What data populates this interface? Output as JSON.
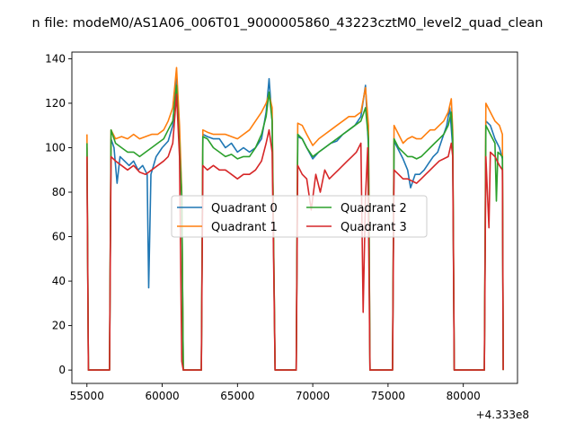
{
  "chart_data": {
    "type": "line",
    "title": "n file: modeM0/AS1A06_006T01_9000005860_43223cztM0_level2_quad_clean",
    "xlabel": "",
    "ylabel": "",
    "x_offset_label": "+4.333e8",
    "xlim": [
      54000,
      83600
    ],
    "ylim": [
      -6,
      143
    ],
    "xticks": [
      55000,
      60000,
      65000,
      70000,
      75000,
      80000
    ],
    "xtick_labels": [
      "55000",
      "60000",
      "65000",
      "70000",
      "75000",
      "80000"
    ],
    "yticks": [
      0,
      20,
      40,
      60,
      80,
      100,
      120,
      140
    ],
    "ytick_labels": [
      "0",
      "20",
      "40",
      "60",
      "80",
      "100",
      "120",
      "140"
    ],
    "legend": {
      "placement": "center",
      "columns": 2
    },
    "series": [
      {
        "name": "Quadrant 0",
        "color": "#1f77b4",
        "points": [
          [
            55000,
            100
          ],
          [
            55100,
            0
          ],
          [
            56500,
            0
          ],
          [
            56600,
            104
          ],
          [
            56800,
            100
          ],
          [
            57000,
            84
          ],
          [
            57200,
            96
          ],
          [
            57500,
            94
          ],
          [
            57800,
            92
          ],
          [
            58100,
            94
          ],
          [
            58400,
            90
          ],
          [
            58700,
            92
          ],
          [
            59000,
            88
          ],
          [
            59100,
            37
          ],
          [
            59250,
            88
          ],
          [
            59600,
            96
          ],
          [
            60000,
            100
          ],
          [
            60400,
            103
          ],
          [
            60700,
            110
          ],
          [
            60950,
            132
          ],
          [
            61150,
            105
          ],
          [
            61300,
            78
          ],
          [
            61400,
            0
          ],
          [
            62600,
            0
          ],
          [
            62700,
            106
          ],
          [
            63000,
            105
          ],
          [
            63400,
            104
          ],
          [
            63800,
            104
          ],
          [
            64200,
            100
          ],
          [
            64600,
            102
          ],
          [
            65000,
            98
          ],
          [
            65400,
            100
          ],
          [
            65800,
            98
          ],
          [
            66200,
            100
          ],
          [
            66600,
            104
          ],
          [
            66900,
            116
          ],
          [
            67100,
            131
          ],
          [
            67300,
            112
          ],
          [
            67500,
            0
          ],
          [
            68900,
            0
          ],
          [
            69000,
            105
          ],
          [
            69300,
            104
          ],
          [
            69600,
            100
          ],
          [
            70000,
            95
          ],
          [
            70400,
            98
          ],
          [
            70800,
            100
          ],
          [
            71200,
            102
          ],
          [
            71600,
            103
          ],
          [
            72000,
            106
          ],
          [
            72400,
            108
          ],
          [
            72800,
            110
          ],
          [
            73200,
            114
          ],
          [
            73500,
            128
          ],
          [
            73700,
            100
          ],
          [
            73800,
            0
          ],
          [
            75300,
            0
          ],
          [
            75400,
            103
          ],
          [
            75700,
            99
          ],
          [
            76000,
            95
          ],
          [
            76300,
            90
          ],
          [
            76500,
            82
          ],
          [
            76800,
            88
          ],
          [
            77100,
            88
          ],
          [
            77400,
            90
          ],
          [
            77700,
            93
          ],
          [
            78000,
            96
          ],
          [
            78300,
            98
          ],
          [
            78600,
            104
          ],
          [
            78900,
            110
          ],
          [
            79100,
            118
          ],
          [
            79300,
            100
          ],
          [
            79400,
            0
          ],
          [
            81400,
            0
          ],
          [
            81500,
            112
          ],
          [
            81800,
            110
          ],
          [
            82100,
            104
          ],
          [
            82400,
            100
          ],
          [
            82600,
            95
          ],
          [
            82650,
            0
          ]
        ]
      },
      {
        "name": "Quadrant 1",
        "color": "#ff7f0e",
        "points": [
          [
            55000,
            106
          ],
          [
            55100,
            0
          ],
          [
            56500,
            0
          ],
          [
            56600,
            108
          ],
          [
            56900,
            104
          ],
          [
            57300,
            105
          ],
          [
            57700,
            104
          ],
          [
            58100,
            106
          ],
          [
            58500,
            104
          ],
          [
            58900,
            105
          ],
          [
            59300,
            106
          ],
          [
            59700,
            106
          ],
          [
            60100,
            108
          ],
          [
            60400,
            112
          ],
          [
            60700,
            118
          ],
          [
            60950,
            136
          ],
          [
            61150,
            110
          ],
          [
            61300,
            80
          ],
          [
            61400,
            0
          ],
          [
            62600,
            0
          ],
          [
            62700,
            108
          ],
          [
            63000,
            107
          ],
          [
            63400,
            106
          ],
          [
            63800,
            106
          ],
          [
            64200,
            106
          ],
          [
            64600,
            105
          ],
          [
            65000,
            104
          ],
          [
            65400,
            106
          ],
          [
            65800,
            108
          ],
          [
            66200,
            112
          ],
          [
            66600,
            116
          ],
          [
            66900,
            120
          ],
          [
            67100,
            124
          ],
          [
            67300,
            118
          ],
          [
            67500,
            0
          ],
          [
            68900,
            0
          ],
          [
            69000,
            111
          ],
          [
            69300,
            110
          ],
          [
            69600,
            106
          ],
          [
            70000,
            101
          ],
          [
            70400,
            104
          ],
          [
            70800,
            106
          ],
          [
            71200,
            108
          ],
          [
            71600,
            110
          ],
          [
            72000,
            112
          ],
          [
            72400,
            114
          ],
          [
            72800,
            114
          ],
          [
            73200,
            116
          ],
          [
            73500,
            127
          ],
          [
            73700,
            110
          ],
          [
            73800,
            0
          ],
          [
            75300,
            0
          ],
          [
            75400,
            110
          ],
          [
            75700,
            106
          ],
          [
            76000,
            102
          ],
          [
            76300,
            104
          ],
          [
            76600,
            105
          ],
          [
            76900,
            104
          ],
          [
            77200,
            104
          ],
          [
            77500,
            106
          ],
          [
            77800,
            108
          ],
          [
            78100,
            108
          ],
          [
            78400,
            110
          ],
          [
            78700,
            112
          ],
          [
            79000,
            116
          ],
          [
            79200,
            122
          ],
          [
            79300,
            108
          ],
          [
            79400,
            0
          ],
          [
            81400,
            0
          ],
          [
            81500,
            120
          ],
          [
            81800,
            116
          ],
          [
            82100,
            112
          ],
          [
            82400,
            110
          ],
          [
            82600,
            106
          ],
          [
            82650,
            0
          ]
        ]
      },
      {
        "name": "Quadrant 2",
        "color": "#2ca02c",
        "points": [
          [
            55000,
            102
          ],
          [
            55100,
            0
          ],
          [
            56500,
            0
          ],
          [
            56600,
            108
          ],
          [
            56900,
            102
          ],
          [
            57300,
            100
          ],
          [
            57700,
            98
          ],
          [
            58100,
            98
          ],
          [
            58500,
            96
          ],
          [
            58900,
            98
          ],
          [
            59300,
            100
          ],
          [
            59700,
            102
          ],
          [
            60100,
            104
          ],
          [
            60400,
            108
          ],
          [
            60700,
            112
          ],
          [
            60950,
            128
          ],
          [
            61150,
            100
          ],
          [
            61300,
            78
          ],
          [
            61400,
            0
          ],
          [
            62600,
            0
          ],
          [
            62700,
            105
          ],
          [
            63000,
            104
          ],
          [
            63400,
            100
          ],
          [
            63800,
            98
          ],
          [
            64200,
            96
          ],
          [
            64600,
            97
          ],
          [
            65000,
            95
          ],
          [
            65400,
            96
          ],
          [
            65800,
            96
          ],
          [
            66200,
            100
          ],
          [
            66600,
            106
          ],
          [
            66900,
            114
          ],
          [
            67100,
            125
          ],
          [
            67300,
            112
          ],
          [
            67500,
            0
          ],
          [
            68900,
            0
          ],
          [
            69000,
            106
          ],
          [
            69300,
            104
          ],
          [
            69600,
            100
          ],
          [
            70000,
            96
          ],
          [
            70400,
            98
          ],
          [
            70800,
            100
          ],
          [
            71200,
            102
          ],
          [
            71600,
            104
          ],
          [
            72000,
            106
          ],
          [
            72400,
            108
          ],
          [
            72800,
            110
          ],
          [
            73200,
            112
          ],
          [
            73500,
            118
          ],
          [
            73700,
            104
          ],
          [
            73800,
            0
          ],
          [
            75300,
            0
          ],
          [
            75400,
            104
          ],
          [
            75700,
            100
          ],
          [
            76000,
            98
          ],
          [
            76300,
            96
          ],
          [
            76600,
            96
          ],
          [
            76900,
            95
          ],
          [
            77200,
            96
          ],
          [
            77500,
            98
          ],
          [
            77800,
            100
          ],
          [
            78100,
            102
          ],
          [
            78400,
            104
          ],
          [
            78700,
            106
          ],
          [
            79000,
            110
          ],
          [
            79200,
            116
          ],
          [
            79300,
            104
          ],
          [
            79400,
            0
          ],
          [
            81400,
            0
          ],
          [
            81500,
            110
          ],
          [
            81800,
            106
          ],
          [
            82100,
            102
          ],
          [
            82200,
            76
          ],
          [
            82300,
            98
          ],
          [
            82600,
            96
          ],
          [
            82650,
            0
          ]
        ]
      },
      {
        "name": "Quadrant 3",
        "color": "#d62728",
        "points": [
          [
            55000,
            96
          ],
          [
            55100,
            0
          ],
          [
            56500,
            0
          ],
          [
            56600,
            96
          ],
          [
            56900,
            94
          ],
          [
            57300,
            92
          ],
          [
            57700,
            90
          ],
          [
            58100,
            92
          ],
          [
            58500,
            89
          ],
          [
            58900,
            88
          ],
          [
            59300,
            90
          ],
          [
            59700,
            92
          ],
          [
            60100,
            94
          ],
          [
            60400,
            96
          ],
          [
            60700,
            102
          ],
          [
            60950,
            124
          ],
          [
            61150,
            96
          ],
          [
            61300,
            4
          ],
          [
            61400,
            0
          ],
          [
            62600,
            0
          ],
          [
            62700,
            92
          ],
          [
            63000,
            90
          ],
          [
            63400,
            92
          ],
          [
            63800,
            90
          ],
          [
            64200,
            90
          ],
          [
            64600,
            88
          ],
          [
            65000,
            86
          ],
          [
            65400,
            88
          ],
          [
            65800,
            88
          ],
          [
            66200,
            90
          ],
          [
            66600,
            94
          ],
          [
            66900,
            102
          ],
          [
            67100,
            108
          ],
          [
            67300,
            98
          ],
          [
            67500,
            0
          ],
          [
            68900,
            0
          ],
          [
            69000,
            92
          ],
          [
            69300,
            88
          ],
          [
            69600,
            86
          ],
          [
            69900,
            72
          ],
          [
            70200,
            88
          ],
          [
            70500,
            80
          ],
          [
            70800,
            90
          ],
          [
            71100,
            86
          ],
          [
            71400,
            88
          ],
          [
            71700,
            90
          ],
          [
            72000,
            92
          ],
          [
            72300,
            94
          ],
          [
            72600,
            96
          ],
          [
            72900,
            98
          ],
          [
            73200,
            102
          ],
          [
            73350,
            26
          ],
          [
            73500,
            78
          ],
          [
            73650,
            100
          ],
          [
            73800,
            0
          ],
          [
            75300,
            0
          ],
          [
            75400,
            90
          ],
          [
            75700,
            88
          ],
          [
            76000,
            86
          ],
          [
            76300,
            86
          ],
          [
            76600,
            85
          ],
          [
            76900,
            84
          ],
          [
            77200,
            86
          ],
          [
            77500,
            88
          ],
          [
            77800,
            90
          ],
          [
            78100,
            92
          ],
          [
            78400,
            94
          ],
          [
            78700,
            95
          ],
          [
            79000,
            96
          ],
          [
            79200,
            102
          ],
          [
            79300,
            96
          ],
          [
            79400,
            0
          ],
          [
            81400,
            0
          ],
          [
            81500,
            96
          ],
          [
            81700,
            64
          ],
          [
            81800,
            98
          ],
          [
            82100,
            96
          ],
          [
            82400,
            92
          ],
          [
            82600,
            90
          ],
          [
            82650,
            0
          ]
        ]
      }
    ]
  }
}
